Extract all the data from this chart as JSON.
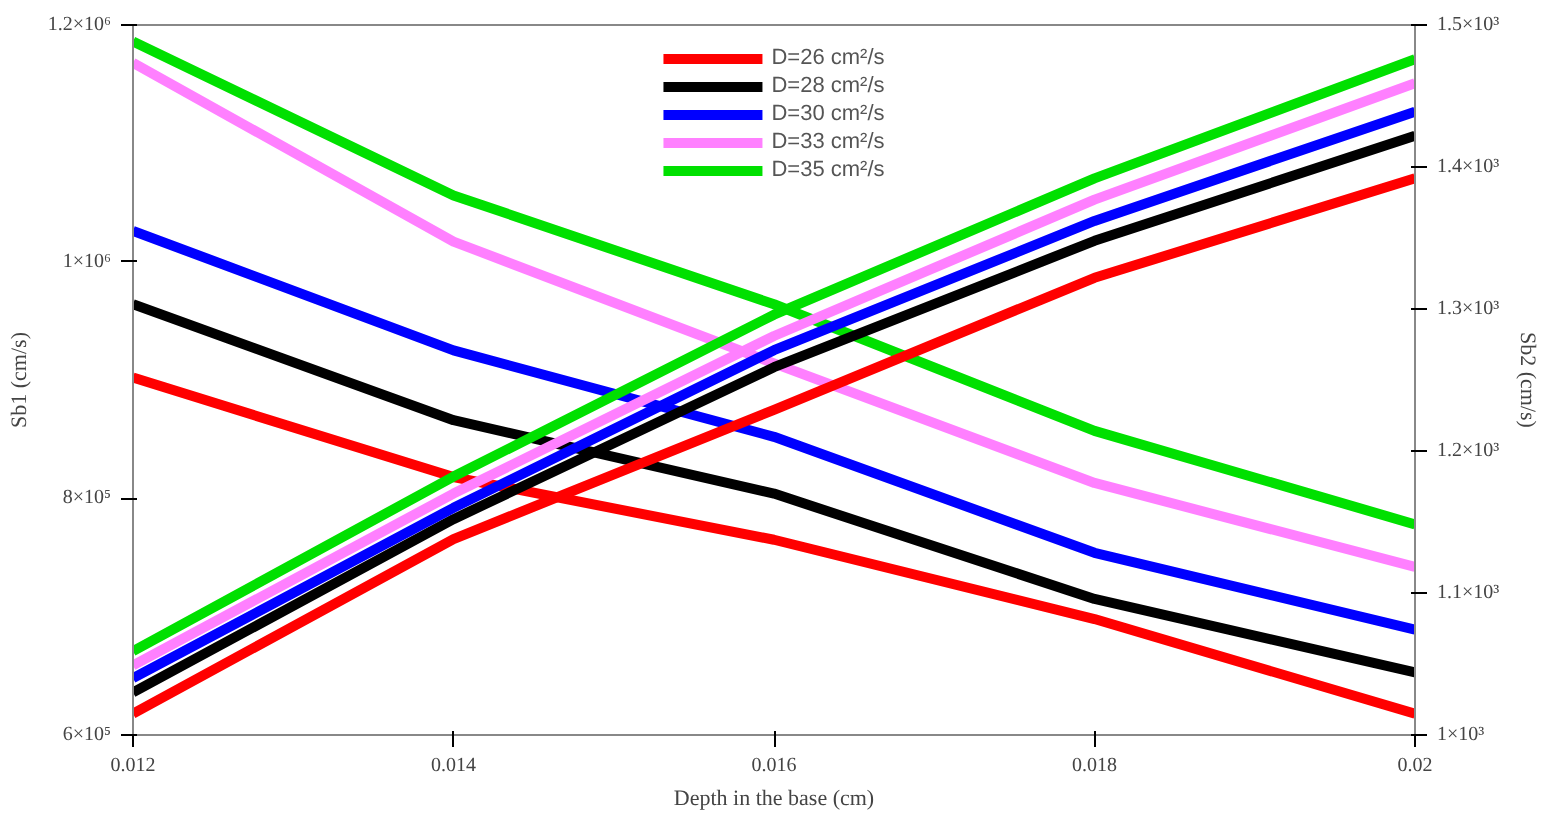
{
  "chart_data": {
    "type": "line",
    "xlabel": "Depth in the base (cm)",
    "ylabel": "Sb1 (cm/s)",
    "y2label": "Sb2 (cm/s)",
    "x": [
      0.012,
      0.014,
      0.016,
      0.018,
      0.02
    ],
    "xlim": [
      0.012,
      0.02
    ],
    "xticks": [
      0.012,
      0.014,
      0.016,
      0.018,
      0.02
    ],
    "ylim": [
      600000,
      1200000
    ],
    "yticks": [
      {
        "value": 600000,
        "label": "6×10⁵"
      },
      {
        "value": 800000,
        "label": "8×10⁵"
      },
      {
        "value": 1000000,
        "label": "1×10⁶"
      },
      {
        "value": 1200000,
        "label": "1.2×10⁶"
      }
    ],
    "y2lim": [
      1000,
      1500
    ],
    "y2ticks": [
      {
        "value": 1000,
        "label": "1×10³"
      },
      {
        "value": 1100,
        "label": "1.1×10³"
      },
      {
        "value": 1200,
        "label": "1.2×10³"
      },
      {
        "value": 1300,
        "label": "1.3×10³"
      },
      {
        "value": 1400,
        "label": "1.4×10³"
      },
      {
        "value": 1500,
        "label": "1.5×10³"
      }
    ],
    "grid": false,
    "legend": "top",
    "marker": "none",
    "line_style": "solid",
    "series": [
      {
        "name": "D=26 cm²/s",
        "color": "#ff0000",
        "values": [
          902000,
          818000,
          765000,
          698000,
          618000
        ]
      },
      {
        "name": "D=28 cm²/s",
        "color": "#000000",
        "values": [
          964000,
          866000,
          804000,
          715000,
          653000
        ]
      },
      {
        "name": "D=30 cm²/s",
        "color": "#0000ff",
        "values": [
          1026000,
          925000,
          852000,
          754000,
          689000
        ]
      },
      {
        "name": "D=33 cm²/s",
        "color": "#ff80ff",
        "values": [
          1168000,
          1017000,
          914000,
          813000,
          742000
        ]
      },
      {
        "name": "D=35 cm²/s",
        "color": "#00e000",
        "values": [
          1186000,
          1056000,
          964000,
          857000,
          778000
        ]
      },
      {
        "color": "#ff0000",
        "axis": "y2",
        "values": [
          1015,
          1138,
          1229,
          1322,
          1392
        ]
      },
      {
        "color": "#000000",
        "axis": "y2",
        "values": [
          1030,
          1152,
          1259,
          1348,
          1422
        ]
      },
      {
        "color": "#0000ff",
        "axis": "y2",
        "values": [
          1040,
          1160,
          1271,
          1362,
          1439
        ]
      },
      {
        "color": "#ff80ff",
        "axis": "y2",
        "values": [
          1049,
          1170,
          1281,
          1377,
          1459
        ]
      },
      {
        "color": "#00e000",
        "axis": "y2",
        "values": [
          1059,
          1182,
          1296,
          1392,
          1476
        ]
      }
    ]
  }
}
